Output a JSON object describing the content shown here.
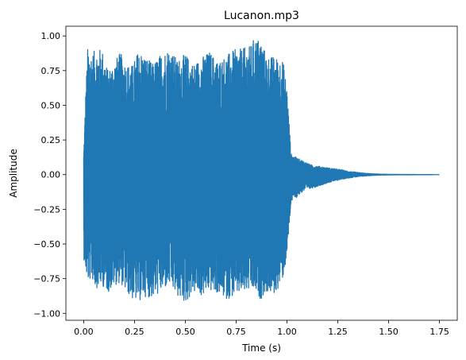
{
  "chart_data": {
    "type": "line",
    "title": "Lucanon.mp3",
    "xlabel": "Time (s)",
    "ylabel": "Amplitude",
    "xlim": [
      -0.0875,
      1.8375
    ],
    "ylim": [
      -1.05,
      1.07
    ],
    "x_ticks": [
      0.0,
      0.25,
      0.5,
      0.75,
      1.0,
      1.25,
      1.5,
      1.75
    ],
    "x_tick_labels": [
      "0.00",
      "0.25",
      "0.50",
      "0.75",
      "1.00",
      "1.25",
      "1.50",
      "1.75"
    ],
    "y_ticks": [
      1.0,
      0.75,
      0.5,
      0.25,
      0.0,
      -0.25,
      -0.5,
      -0.75,
      -1.0
    ],
    "y_tick_labels": [
      "1.00",
      "0.75",
      "0.50",
      "0.25",
      "0.00",
      "−0.25",
      "−0.50",
      "−0.75",
      "−1.00"
    ],
    "grid": false,
    "series": [
      {
        "color": "#1f77b4",
        "duration": 1.75,
        "envelope": [
          [
            0.0,
            0.15,
            -0.6
          ],
          [
            0.01,
            0.6,
            -0.7
          ],
          [
            0.02,
            0.92,
            -0.78
          ],
          [
            0.04,
            0.88,
            -0.75
          ],
          [
            0.06,
            0.9,
            -0.82
          ],
          [
            0.09,
            0.91,
            -0.8
          ],
          [
            0.12,
            0.75,
            -0.85
          ],
          [
            0.15,
            0.82,
            -0.8
          ],
          [
            0.18,
            0.88,
            -0.78
          ],
          [
            0.21,
            0.8,
            -0.85
          ],
          [
            0.24,
            0.79,
            -0.9
          ],
          [
            0.27,
            0.9,
            -0.92
          ],
          [
            0.3,
            0.86,
            -0.88
          ],
          [
            0.34,
            0.8,
            -0.89
          ],
          [
            0.38,
            0.87,
            -0.85
          ],
          [
            0.42,
            0.92,
            -0.8
          ],
          [
            0.46,
            0.83,
            -0.88
          ],
          [
            0.5,
            0.87,
            -0.93
          ],
          [
            0.54,
            0.8,
            -0.85
          ],
          [
            0.58,
            0.85,
            -0.88
          ],
          [
            0.62,
            0.89,
            -0.84
          ],
          [
            0.66,
            0.82,
            -0.86
          ],
          [
            0.7,
            0.86,
            -0.9
          ],
          [
            0.74,
            0.9,
            -0.88
          ],
          [
            0.78,
            0.91,
            -0.86
          ],
          [
            0.82,
            0.93,
            -0.84
          ],
          [
            0.84,
            0.99,
            -0.85
          ],
          [
            0.87,
            0.98,
            -0.9
          ],
          [
            0.9,
            0.86,
            -0.85
          ],
          [
            0.94,
            0.85,
            -0.87
          ],
          [
            0.98,
            0.83,
            -0.75
          ],
          [
            1.0,
            0.63,
            -0.6
          ],
          [
            1.02,
            0.15,
            -0.2
          ],
          [
            1.05,
            0.12,
            -0.16
          ],
          [
            1.08,
            0.1,
            -0.12
          ],
          [
            1.12,
            0.07,
            -0.1
          ],
          [
            1.16,
            0.06,
            -0.08
          ],
          [
            1.2,
            0.05,
            -0.06
          ],
          [
            1.25,
            0.04,
            -0.04
          ],
          [
            1.3,
            0.025,
            -0.025
          ],
          [
            1.35,
            0.015,
            -0.015
          ],
          [
            1.4,
            0.008,
            -0.008
          ],
          [
            1.45,
            0.004,
            -0.004
          ],
          [
            1.5,
            0.002,
            -0.002
          ],
          [
            1.75,
            0.0,
            0.0
          ]
        ]
      }
    ]
  }
}
